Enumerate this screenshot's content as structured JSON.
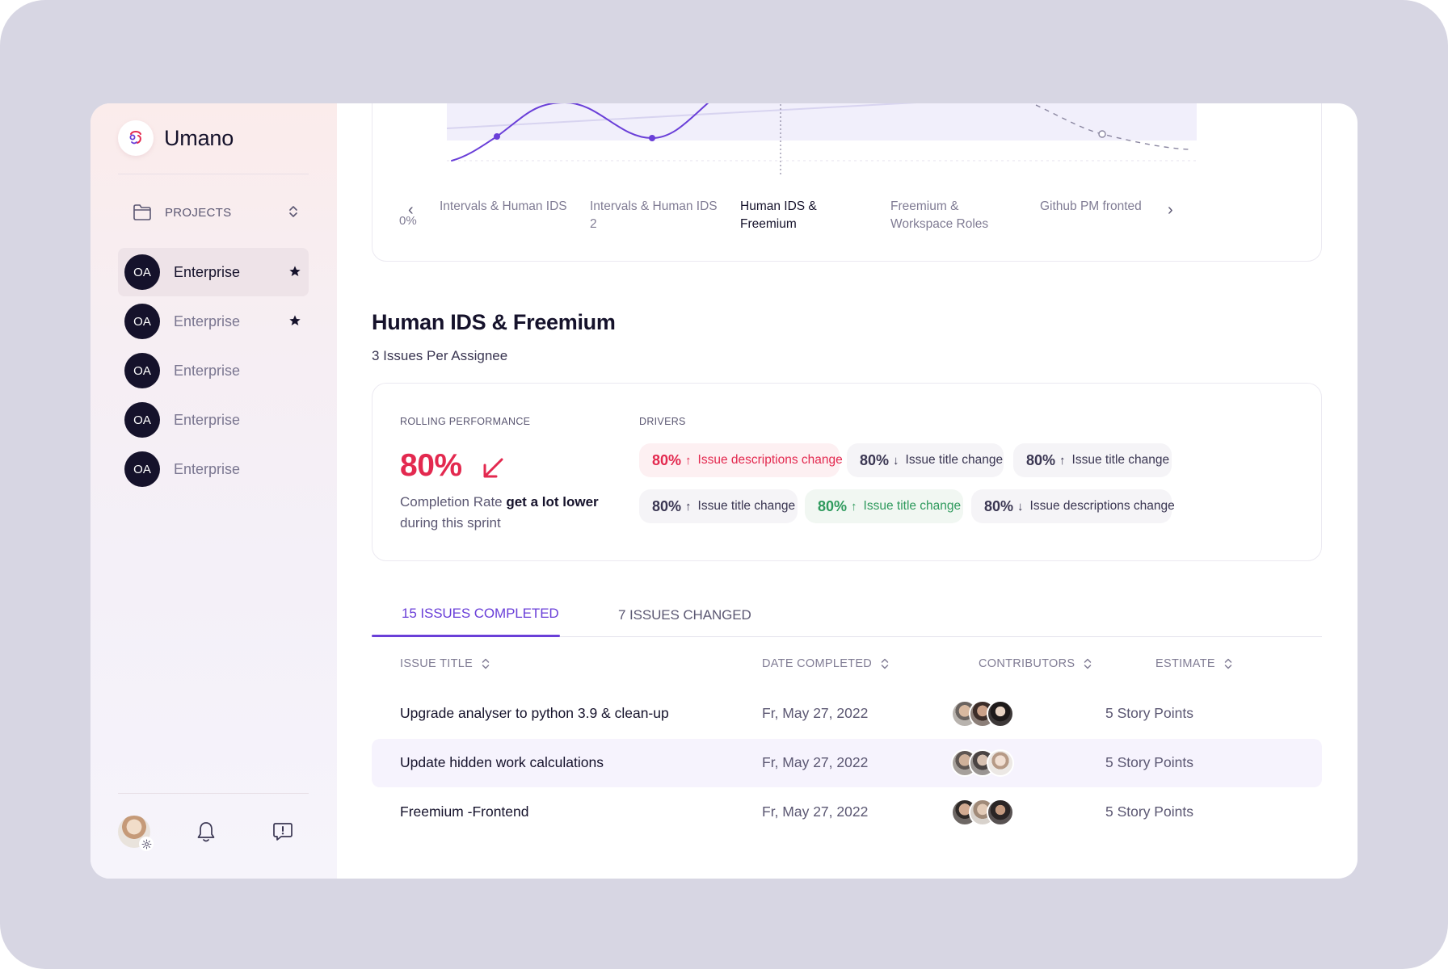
{
  "app": {
    "name": "Umano"
  },
  "sidebar": {
    "projects_label": "PROJECTS",
    "items": [
      {
        "initials": "OA",
        "name": "Enterprise",
        "starred": true,
        "active": true
      },
      {
        "initials": "OA",
        "name": "Enterprise",
        "starred": true,
        "active": false
      },
      {
        "initials": "OA",
        "name": "Enterprise",
        "starred": false,
        "active": false
      },
      {
        "initials": "OA",
        "name": "Enterprise",
        "starred": false,
        "active": false
      },
      {
        "initials": "OA",
        "name": "Enterprise",
        "starred": false,
        "active": false
      }
    ]
  },
  "chart": {
    "y_tick": "0%",
    "x_labels": [
      "Intervals & Human IDS",
      "Intervals & Human IDS 2",
      "Human IDS & Freemium",
      "Freemium & Workspace Roles",
      "Github PM fronted"
    ],
    "selected_index": 2
  },
  "chart_data": {
    "type": "line",
    "categories": [
      "Intervals & Human IDS",
      "Intervals & Human IDS 2",
      "Human IDS & Freemium",
      "Freemium & Workspace Roles",
      "Github PM fronted"
    ],
    "yticks": [
      "0%"
    ],
    "series": [
      {
        "name": "",
        "style": "solid",
        "color": "#6a3fd8"
      },
      {
        "name": "",
        "style": "dashed",
        "color": "#8a86a0"
      }
    ]
  },
  "detail": {
    "title": "Human IDS & Freemium",
    "subtitle": "3 Issues Per Assignee"
  },
  "performance": {
    "caption": "ROLLING PERFORMANCE",
    "value": "80%",
    "desc_pre": "Completion Rate ",
    "desc_bold": "get a lot lower",
    "desc_post": "during this sprint",
    "accent": "#e3294f"
  },
  "drivers": {
    "caption": "DRIVERS",
    "pills": [
      {
        "value": "80%",
        "arrow": "↑",
        "text": "Issue descriptions change",
        "tone": "red"
      },
      {
        "value": "80%",
        "arrow": "↓",
        "text": "Issue title change",
        "tone": "neutral"
      },
      {
        "value": "80%",
        "arrow": "↑",
        "text": "Issue title change",
        "tone": "neutral"
      },
      {
        "value": "80%",
        "arrow": "↑",
        "text": "Issue title change",
        "tone": "neutral"
      },
      {
        "value": "80%",
        "arrow": "↑",
        "text": "Issue title change",
        "tone": "green"
      },
      {
        "value": "80%",
        "arrow": "↓",
        "text": "Issue descriptions change",
        "tone": "neutral"
      }
    ]
  },
  "tabs": [
    {
      "label": "15 ISSUES COMPLETED",
      "active": true
    },
    {
      "label": "7 ISSUES CHANGED",
      "active": false
    }
  ],
  "table": {
    "headers": [
      "ISSUE TITLE",
      "DATE COMPLETED",
      "CONTRIBUTORS",
      "ESTIMATE"
    ],
    "rows": [
      {
        "title": "Upgrade analyser to python 3.9 & clean-up",
        "date": "Fr, May 27, 2022",
        "estimate": "5 Story Points"
      },
      {
        "title": "Update hidden work calculations",
        "date": "Fr, May 27, 2022",
        "estimate": "5 Story Points"
      },
      {
        "title": "Freemium -Frontend",
        "date": "Fr, May 27, 2022",
        "estimate": "5 Story Points"
      }
    ]
  },
  "colors": {
    "brand": "#6a3fd8",
    "red": "#e3294f",
    "green": "#2f9a5d",
    "dark": "#15122b"
  }
}
